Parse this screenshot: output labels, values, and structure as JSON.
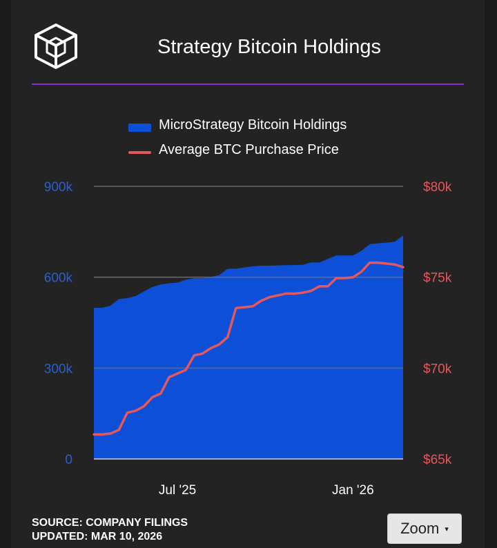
{
  "header": {
    "title": "Strategy Bitcoin Holdings"
  },
  "legend": {
    "holdings_label": "MicroStrategy Bitcoin Holdings",
    "price_label": "Average BTC Purchase Price"
  },
  "footer": {
    "source": "SOURCE: COMPANY FILINGS",
    "updated": "UPDATED: MAR 10, 2026"
  },
  "controls": {
    "zoom_label": "Zoom",
    "zoom_caret": "▾"
  },
  "colors": {
    "holdings": "#0e4fd8",
    "price": "#e4585d",
    "left_axis_text": "#2a5fcf",
    "right_axis_text": "#e4585d",
    "accent": "#8a2bd6"
  },
  "chart_data": {
    "type": "area",
    "x_tick_labels": [
      "Jul '25",
      "Jan '26"
    ],
    "x_ticks_at_index": [
      10,
      31
    ],
    "left_axis": {
      "ticks": [
        "0",
        "300k",
        "600k",
        "900k"
      ],
      "ylim": [
        0,
        900000
      ]
    },
    "right_axis": {
      "ticks": [
        "$65k",
        "$70k",
        "$75k",
        "$80k"
      ],
      "ylim": [
        65000,
        80000
      ]
    },
    "grid": true,
    "legend_position": "top",
    "series": [
      {
        "name": "MicroStrategy Bitcoin Holdings",
        "axis": "left",
        "kind": "area",
        "values": [
          499000,
          499000,
          506000,
          528000,
          531000,
          538000,
          553000,
          568000,
          576000,
          580000,
          582000,
          592000,
          597000,
          597000,
          601000,
          607000,
          628000,
          628000,
          632000,
          636000,
          638000,
          638000,
          639000,
          640000,
          640000,
          641000,
          649000,
          649000,
          660000,
          672000,
          672000,
          672000,
          687000,
          709000,
          712000,
          714000,
          717000,
          738000
        ]
      },
      {
        "name": "Average BTC Purchase Price",
        "axis": "right",
        "kind": "line",
        "values": [
          66350,
          66350,
          66400,
          66600,
          67550,
          67650,
          67900,
          68400,
          68600,
          69500,
          69700,
          69900,
          70700,
          70800,
          71100,
          71300,
          71700,
          73300,
          73350,
          73400,
          73700,
          73900,
          74000,
          74100,
          74100,
          74150,
          74250,
          74500,
          74500,
          74950,
          74950,
          75000,
          75300,
          75800,
          75800,
          75750,
          75700,
          75550
        ]
      }
    ]
  }
}
